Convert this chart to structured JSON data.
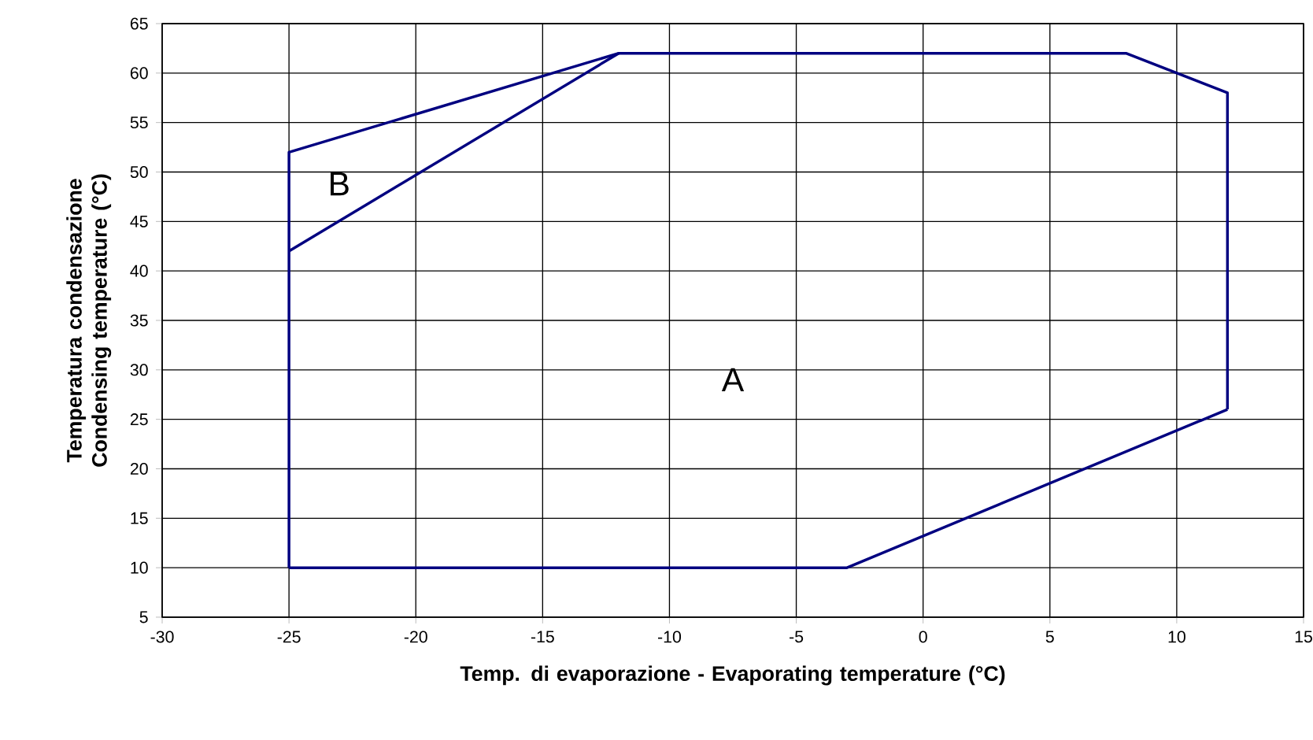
{
  "chart_data": {
    "type": "line",
    "xlabel": "Temp. di evaporazione - Evaporating temperature (°C)",
    "ylabel": "Temperatura condensazione Condensing temperature (°C)",
    "xlim": [
      -30,
      15
    ],
    "ylim": [
      5,
      65
    ],
    "xticks": [
      -30,
      -25,
      -20,
      -15,
      -10,
      -5,
      0,
      5,
      10,
      15
    ],
    "yticks": [
      5,
      10,
      15,
      20,
      25,
      30,
      35,
      40,
      45,
      50,
      55,
      60,
      65
    ],
    "grid": true,
    "marker": "none",
    "line_style": "solid",
    "series": [
      {
        "color": "#000080",
        "x": [
          -25,
          -12
        ],
        "values": [
          42,
          62
        ]
      },
      {
        "color": "#000080",
        "x": [
          -25,
          -25,
          -12,
          8,
          12,
          12
        ],
        "values": [
          10,
          52,
          62,
          62,
          58,
          26
        ]
      },
      {
        "color": "#000080",
        "x": [
          -25,
          -3,
          12
        ],
        "values": [
          10,
          10,
          26
        ]
      }
    ],
    "annotations": [
      "A",
      "B"
    ]
  }
}
